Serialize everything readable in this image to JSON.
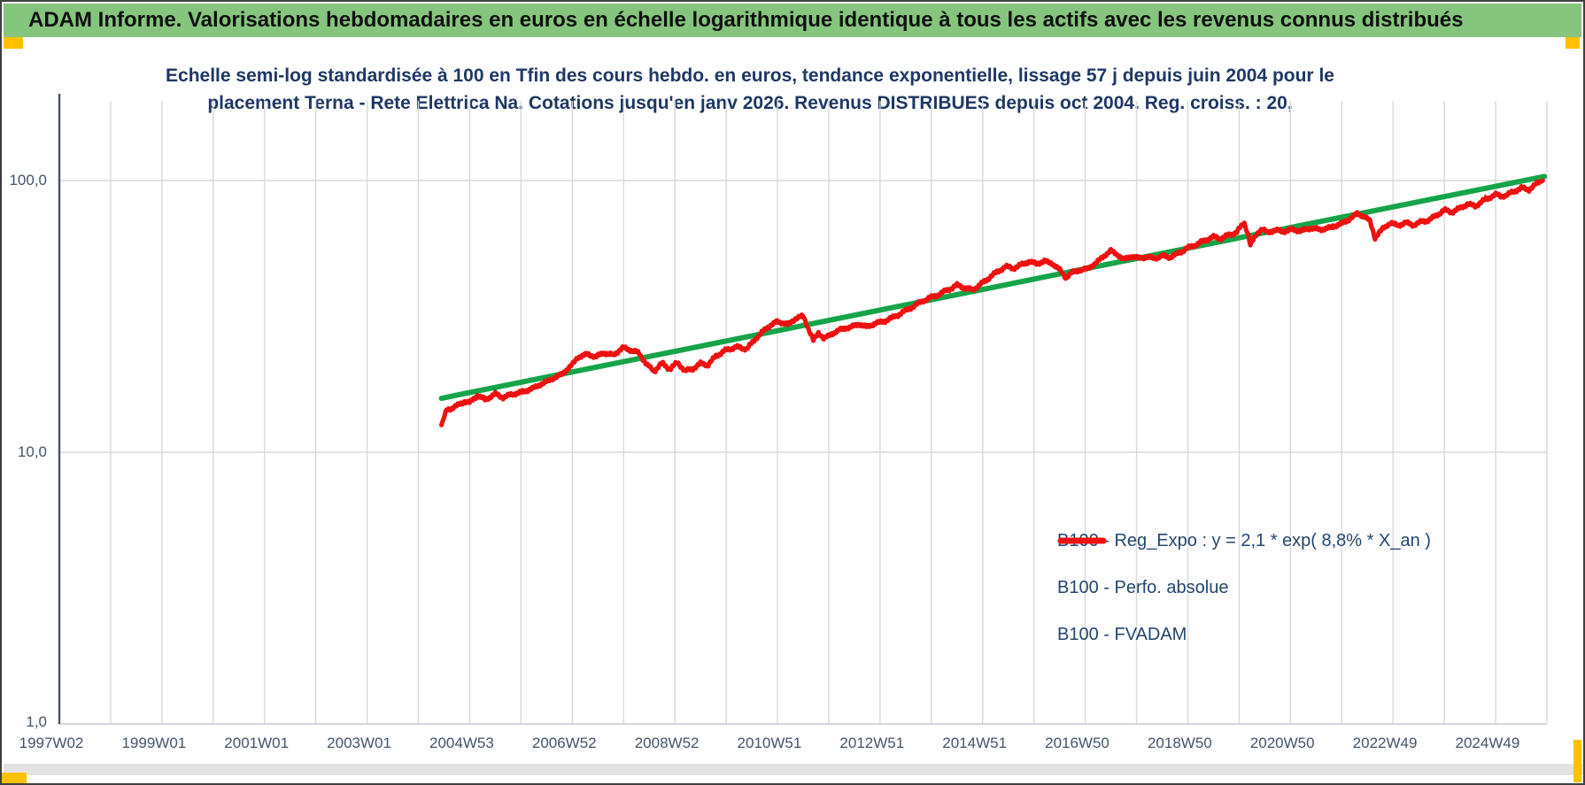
{
  "header": {
    "title": "ADAM Informe. Valorisations hebdomadaires en euros en échelle logarithmique identique à tous les actifs avec les revenus connus distribués",
    "bg_color": "#86C57E",
    "text_color": "#101010"
  },
  "accents": {
    "gold_marker_color": "#FFC000",
    "outer_border_color": "#3f3f3f",
    "bottom_strip_color": "#e2e2e2"
  },
  "chart_data": {
    "type": "line",
    "title": "Echelle semi-log standardisée à 100 en Tfin des cours hebdo. en euros, tendance exponentielle, lissage 57 j depuis juin 2004 pour le placement Terna - Rete Elettrica Na. Cotations jusqu'en janv 2026. Revenus DISTRIBUES depuis oct 2004. Reg. croiss. : 20,",
    "title_line1": "Echelle semi-log standardisée à 100 en Tfin des cours hebdo. en euros, tendance exponentielle, lissage 57 j depuis juin 2004 pour le",
    "title_line2": "placement Terna - Rete Elettrica Na. Cotations jusqu'en janv 2026. Revenus DISTRIBUES depuis oct 2004. Reg. croiss. : 20,",
    "title_color": "#1F3864",
    "grid": "on",
    "gridline_color": "#D9D9D9",
    "axis_line_color": "#44546A",
    "axis_text_color": "#44546A",
    "x_axis": {
      "tick_labels": [
        "1997W02",
        "1999W01",
        "2001W01",
        "2003W01",
        "2004W53",
        "2006W52",
        "2008W52",
        "2010W51",
        "2012W51",
        "2014W51",
        "2016W50",
        "2018W50",
        "2020W50",
        "2022W49",
        "2024W49"
      ],
      "start_year": 1997,
      "end_year": 2026,
      "gridline_every_years": 1,
      "label_every_years": 2
    },
    "y_axis": {
      "scale": "log10",
      "tick_labels": [
        "100,0",
        "10,0",
        "1,0"
      ],
      "tick_values": [
        100,
        10,
        1
      ],
      "range": [
        1,
        196
      ]
    },
    "legend": {
      "position": "inside-right-lower",
      "entries": [
        {
          "label": "B100 - Reg_Expo : y = 2,1 * exp( 8,8% *  X_an )",
          "color": "#15A449",
          "style": "solid"
        },
        {
          "label": "B100 - Perfo. absolue",
          "color": "#EE1111",
          "style": "dotted"
        },
        {
          "label": "B100 - FVADAM",
          "color": "#EE1111",
          "style": "solid"
        }
      ]
    },
    "series": [
      {
        "name": "B100 - Reg_Expo",
        "color": "#15A449",
        "style": "solid",
        "points": [
          [
            2004.45,
            15.8
          ],
          [
            2025.95,
            103.5
          ]
        ]
      },
      {
        "name": "B100 - Perfo. absolue",
        "color": "#EE1111",
        "style": "dotted",
        "points_same_as": "B100 - FVADAM"
      },
      {
        "name": "B100 - FVADAM",
        "color": "#EE1111",
        "style": "solid",
        "points": [
          [
            2004.45,
            12.6
          ],
          [
            2004.55,
            14.3
          ],
          [
            2004.75,
            14.8
          ],
          [
            2004.9,
            15.4
          ],
          [
            2005.0,
            15.2
          ],
          [
            2005.15,
            16.2
          ],
          [
            2005.3,
            15.6
          ],
          [
            2005.5,
            16.4
          ],
          [
            2005.65,
            15.9
          ],
          [
            2005.8,
            16.3
          ],
          [
            2006.0,
            16.6
          ],
          [
            2006.2,
            17.1
          ],
          [
            2006.5,
            18.2
          ],
          [
            2006.8,
            19.4
          ],
          [
            2007.0,
            21.0
          ],
          [
            2007.1,
            22.3
          ],
          [
            2007.3,
            23.0
          ],
          [
            2007.45,
            22.4
          ],
          [
            2007.6,
            23.2
          ],
          [
            2007.8,
            22.8
          ],
          [
            2008.0,
            24.3
          ],
          [
            2008.15,
            23.7
          ],
          [
            2008.3,
            23.2
          ],
          [
            2008.45,
            21.0
          ],
          [
            2008.6,
            19.9
          ],
          [
            2008.75,
            21.3
          ],
          [
            2008.9,
            20.2
          ],
          [
            2009.05,
            21.4
          ],
          [
            2009.2,
            19.9
          ],
          [
            2009.35,
            20.3
          ],
          [
            2009.5,
            21.2
          ],
          [
            2009.65,
            21.0
          ],
          [
            2009.8,
            22.6
          ],
          [
            2010.0,
            23.8
          ],
          [
            2010.2,
            24.4
          ],
          [
            2010.4,
            24.0
          ],
          [
            2010.6,
            26.5
          ],
          [
            2010.8,
            28.8
          ],
          [
            2011.0,
            30.3
          ],
          [
            2011.2,
            29.5
          ],
          [
            2011.35,
            31.0
          ],
          [
            2011.5,
            31.8
          ],
          [
            2011.62,
            28.0
          ],
          [
            2011.7,
            25.8
          ],
          [
            2011.8,
            27.5
          ],
          [
            2011.9,
            26.3
          ],
          [
            2012.0,
            26.8
          ],
          [
            2012.2,
            28.2
          ],
          [
            2012.4,
            28.8
          ],
          [
            2012.6,
            29.6
          ],
          [
            2012.75,
            28.9
          ],
          [
            2012.9,
            29.8
          ],
          [
            2013.1,
            30.4
          ],
          [
            2013.35,
            32.0
          ],
          [
            2013.6,
            34.0
          ],
          [
            2013.85,
            36.2
          ],
          [
            2014.1,
            37.8
          ],
          [
            2014.35,
            39.8
          ],
          [
            2014.5,
            41.2
          ],
          [
            2014.65,
            40.3
          ],
          [
            2014.8,
            39.5
          ],
          [
            2015.0,
            42.0
          ],
          [
            2015.2,
            45.0
          ],
          [
            2015.45,
            48.3
          ],
          [
            2015.6,
            47.5
          ],
          [
            2015.75,
            49.0
          ],
          [
            2015.9,
            50.3
          ],
          [
            2016.05,
            49.4
          ],
          [
            2016.2,
            50.5
          ],
          [
            2016.35,
            49.6
          ],
          [
            2016.5,
            47.0
          ],
          [
            2016.62,
            43.9
          ],
          [
            2016.75,
            46.0
          ],
          [
            2016.9,
            46.8
          ],
          [
            2017.05,
            47.4
          ],
          [
            2017.2,
            49.5
          ],
          [
            2017.35,
            52.5
          ],
          [
            2017.5,
            55.2
          ],
          [
            2017.65,
            53.0
          ],
          [
            2017.75,
            51.2
          ],
          [
            2017.9,
            52.6
          ],
          [
            2018.05,
            51.8
          ],
          [
            2018.2,
            52.3
          ],
          [
            2018.35,
            51.7
          ],
          [
            2018.5,
            52.8
          ],
          [
            2018.65,
            52.2
          ],
          [
            2018.8,
            53.8
          ],
          [
            2019.0,
            56.5
          ],
          [
            2019.2,
            58.5
          ],
          [
            2019.35,
            60.5
          ],
          [
            2019.5,
            62.0
          ],
          [
            2019.65,
            61.2
          ],
          [
            2019.8,
            63.0
          ],
          [
            2019.95,
            64.5
          ],
          [
            2020.1,
            69.9
          ],
          [
            2020.18,
            63.0
          ],
          [
            2020.22,
            57.8
          ],
          [
            2020.35,
            64.0
          ],
          [
            2020.45,
            66.5
          ],
          [
            2020.55,
            64.2
          ],
          [
            2020.7,
            65.8
          ],
          [
            2020.85,
            64.8
          ],
          [
            2021.0,
            66.0
          ],
          [
            2021.2,
            65.3
          ],
          [
            2021.4,
            66.8
          ],
          [
            2021.6,
            66.0
          ],
          [
            2021.8,
            67.3
          ],
          [
            2022.0,
            69.5
          ],
          [
            2022.15,
            72.0
          ],
          [
            2022.3,
            75.6
          ],
          [
            2022.45,
            73.5
          ],
          [
            2022.55,
            71.0
          ],
          [
            2022.65,
            61.5
          ],
          [
            2022.8,
            66.5
          ],
          [
            2022.95,
            69.9
          ],
          [
            2023.1,
            68.3
          ],
          [
            2023.25,
            70.0
          ],
          [
            2023.4,
            68.5
          ],
          [
            2023.55,
            70.5
          ],
          [
            2023.7,
            71.5
          ],
          [
            2023.85,
            74.5
          ],
          [
            2024.0,
            77.9
          ],
          [
            2024.15,
            76.5
          ],
          [
            2024.3,
            79.0
          ],
          [
            2024.45,
            81.9
          ],
          [
            2024.6,
            80.5
          ],
          [
            2024.75,
            84.0
          ],
          [
            2024.9,
            87.0
          ],
          [
            2025.0,
            88.9
          ],
          [
            2025.1,
            87.5
          ],
          [
            2025.2,
            88.3
          ],
          [
            2025.35,
            91.0
          ],
          [
            2025.5,
            94.0
          ],
          [
            2025.65,
            92.5
          ],
          [
            2025.8,
            97.5
          ],
          [
            2025.92,
            100.0
          ]
        ]
      }
    ]
  }
}
